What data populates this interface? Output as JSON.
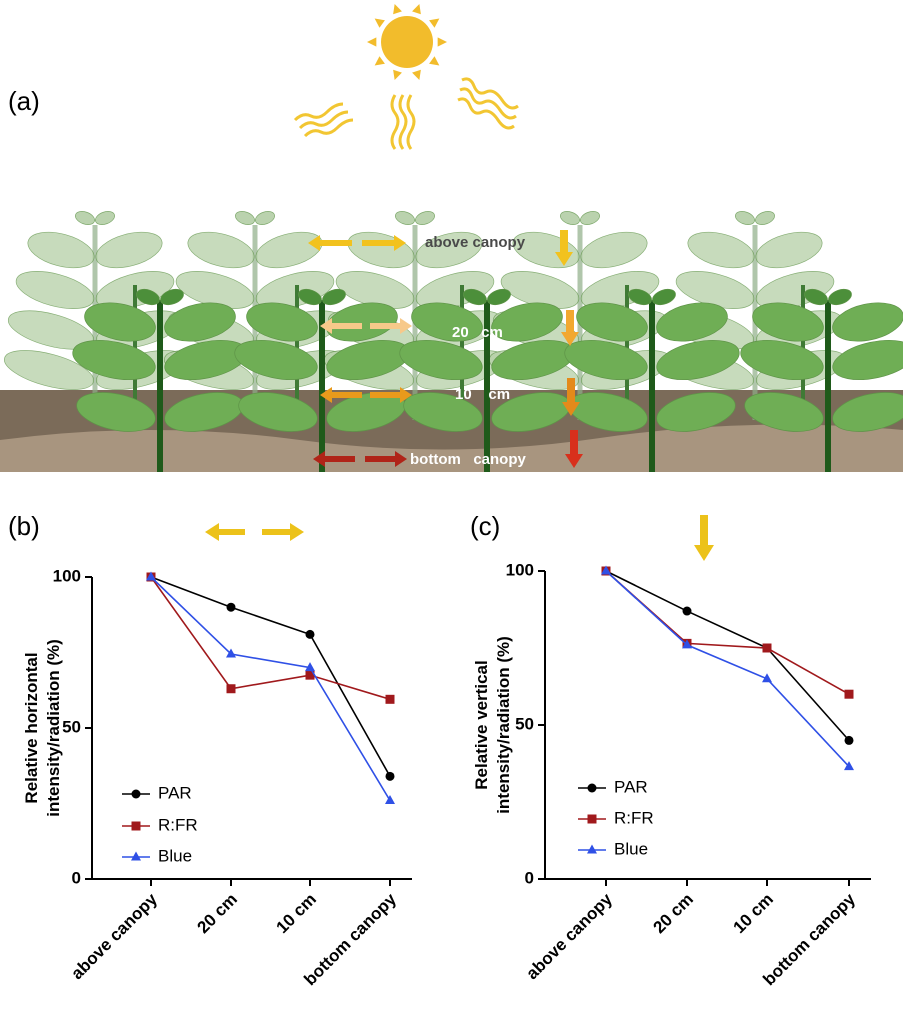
{
  "illustration": {
    "panel_label": "(a)",
    "labels": [
      "above canopy",
      "20   cm",
      "10    cm",
      "bottom   canopy"
    ]
  },
  "chart_data": [
    {
      "type": "line",
      "panel_label": "(b)",
      "ylabel": [
        "Relative horizontal",
        "intensity/radiation (%)"
      ],
      "categories": [
        "above canopy",
        "20 cm",
        "10 cm",
        "bottom canopy"
      ],
      "ylim": [
        0,
        100
      ],
      "yticks": [
        0,
        50,
        100
      ],
      "series": [
        {
          "name": "PAR",
          "color": "#000000",
          "marker": "circle",
          "values": [
            100,
            90,
            81,
            34
          ]
        },
        {
          "name": "R:FR",
          "color": "#a0191c",
          "marker": "square",
          "values": [
            100,
            63,
            67.5,
            59.5
          ]
        },
        {
          "name": "Blue",
          "color": "#2f50e6",
          "marker": "triangle",
          "values": [
            100,
            74.5,
            70,
            26
          ]
        }
      ]
    },
    {
      "type": "line",
      "panel_label": "(c)",
      "ylabel": [
        "Relative vertical",
        "intensity/radiation (%)"
      ],
      "categories": [
        "above canopy",
        "20 cm",
        "10 cm",
        "bottom canopy"
      ],
      "ylim": [
        0,
        100
      ],
      "yticks": [
        0,
        50,
        100
      ],
      "series": [
        {
          "name": "PAR",
          "color": "#000000",
          "marker": "circle",
          "values": [
            100,
            87,
            75,
            45
          ]
        },
        {
          "name": "R:FR",
          "color": "#a0191c",
          "marker": "square",
          "values": [
            100,
            76.5,
            75,
            60
          ]
        },
        {
          "name": "Blue",
          "color": "#2f50e6",
          "marker": "triangle",
          "values": [
            100,
            76,
            65,
            36.5
          ]
        }
      ]
    }
  ]
}
